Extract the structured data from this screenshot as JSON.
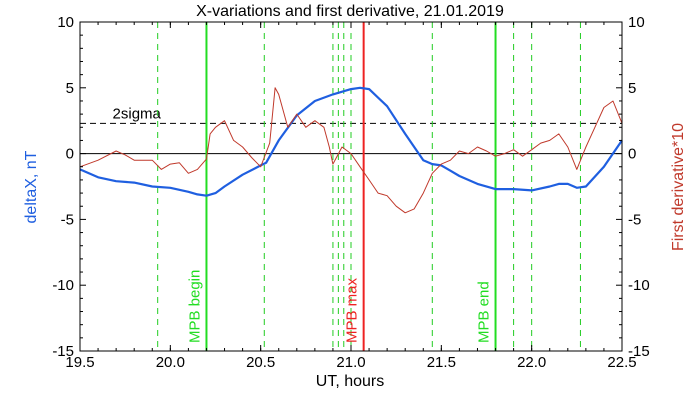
{
  "chart_data": {
    "type": "line",
    "title": "X-variations and first derivative, 21.01.2019",
    "xlabel": "UT, hours",
    "ylabel_left": "deltaX, nT",
    "ylabel_right": "First derivative*10",
    "xlim": [
      19.5,
      22.5
    ],
    "ylim": [
      -15,
      10
    ],
    "x_ticks": [
      "19.5",
      "20.0",
      "20.5",
      "21.0",
      "21.5",
      "22.0",
      "22.5"
    ],
    "y_ticks": [
      "10",
      "5",
      "0",
      "-5",
      "-10",
      "-15"
    ],
    "y_ticks_right": [
      "10",
      "5",
      "0",
      "-5",
      "-10",
      "-15"
    ],
    "threshold": {
      "label": "2sigma",
      "value": 2.3
    },
    "zero_line": 0,
    "series": [
      {
        "name": "deltaX, nT",
        "color": "#1f5fe0",
        "x": [
          19.5,
          19.6,
          19.7,
          19.8,
          19.9,
          20.0,
          20.1,
          20.15,
          20.2,
          20.25,
          20.3,
          20.4,
          20.5,
          20.53,
          20.6,
          20.7,
          20.8,
          20.9,
          21.0,
          21.05,
          21.1,
          21.2,
          21.3,
          21.4,
          21.45,
          21.5,
          21.55,
          21.6,
          21.7,
          21.8,
          21.9,
          22.0,
          22.1,
          22.15,
          22.2,
          22.25,
          22.3,
          22.4,
          22.5
        ],
        "y": [
          -1.2,
          -1.8,
          -2.1,
          -2.2,
          -2.5,
          -2.6,
          -2.9,
          -3.1,
          -3.2,
          -3.0,
          -2.5,
          -1.6,
          -0.9,
          -0.7,
          1.0,
          2.9,
          4.0,
          4.5,
          4.9,
          5.0,
          4.9,
          3.6,
          1.5,
          -0.5,
          -0.8,
          -0.9,
          -1.3,
          -1.7,
          -2.3,
          -2.7,
          -2.7,
          -2.8,
          -2.5,
          -2.3,
          -2.3,
          -2.6,
          -2.5,
          -1.0,
          1.0
        ]
      },
      {
        "name": "First derivative*10",
        "color": "#c0392b",
        "x": [
          19.5,
          19.6,
          19.7,
          19.75,
          19.8,
          19.9,
          19.95,
          20.0,
          20.05,
          20.1,
          20.15,
          20.2,
          20.22,
          20.25,
          20.3,
          20.35,
          20.4,
          20.45,
          20.5,
          20.55,
          20.58,
          20.6,
          20.65,
          20.7,
          20.75,
          20.8,
          20.85,
          20.88,
          20.9,
          20.95,
          21.0,
          21.05,
          21.1,
          21.15,
          21.2,
          21.25,
          21.3,
          21.35,
          21.4,
          21.45,
          21.5,
          21.55,
          21.6,
          21.65,
          21.7,
          21.75,
          21.8,
          21.85,
          21.9,
          21.95,
          22.0,
          22.05,
          22.1,
          22.15,
          22.2,
          22.25,
          22.3,
          22.35,
          22.4,
          22.45,
          22.5
        ],
        "y": [
          -1.0,
          -0.5,
          0.2,
          -0.1,
          -0.5,
          -0.5,
          -1.2,
          -0.8,
          -0.7,
          -1.5,
          -1.2,
          -0.4,
          1.5,
          2.0,
          2.5,
          1.0,
          0.5,
          -0.3,
          -1.0,
          0.8,
          5.0,
          4.5,
          2.0,
          3.0,
          2.0,
          2.5,
          2.0,
          0.5,
          -0.8,
          0.5,
          0.0,
          -1.0,
          -2.0,
          -3.0,
          -3.2,
          -4.0,
          -4.5,
          -4.2,
          -3.0,
          -1.5,
          -0.8,
          -0.5,
          0.2,
          0.0,
          0.5,
          0.2,
          -0.2,
          0.0,
          0.3,
          -0.2,
          0.3,
          0.8,
          1.0,
          1.5,
          0.5,
          -1.2,
          0.5,
          2.0,
          3.5,
          4.0,
          2.3
        ]
      }
    ],
    "vertical_markers": [
      {
        "x": 19.93,
        "style": "dashed",
        "color": "#22cc22",
        "label": ""
      },
      {
        "x": 20.2,
        "style": "solid",
        "color": "#22dd22",
        "label": "MPB begin"
      },
      {
        "x": 20.52,
        "style": "dashed",
        "color": "#22cc22",
        "label": ""
      },
      {
        "x": 20.9,
        "style": "dashed",
        "color": "#22cc22",
        "label": ""
      },
      {
        "x": 20.93,
        "style": "dashed",
        "color": "#22cc22",
        "label": ""
      },
      {
        "x": 20.96,
        "style": "dashed",
        "color": "#22cc22",
        "label": ""
      },
      {
        "x": 21.0,
        "style": "dashed",
        "color": "#22cc22",
        "label": ""
      },
      {
        "x": 21.07,
        "style": "solid",
        "color": "#ee2222",
        "label": "MPB max"
      },
      {
        "x": 21.45,
        "style": "dashed",
        "color": "#22cc22",
        "label": ""
      },
      {
        "x": 21.8,
        "style": "solid",
        "color": "#22dd22",
        "label": "MPB end"
      },
      {
        "x": 21.9,
        "style": "dashed",
        "color": "#22cc22",
        "label": ""
      },
      {
        "x": 22.0,
        "style": "dashed",
        "color": "#22cc22",
        "label": ""
      },
      {
        "x": 22.27,
        "style": "dashed",
        "color": "#22cc22",
        "label": ""
      }
    ],
    "grid": false
  }
}
